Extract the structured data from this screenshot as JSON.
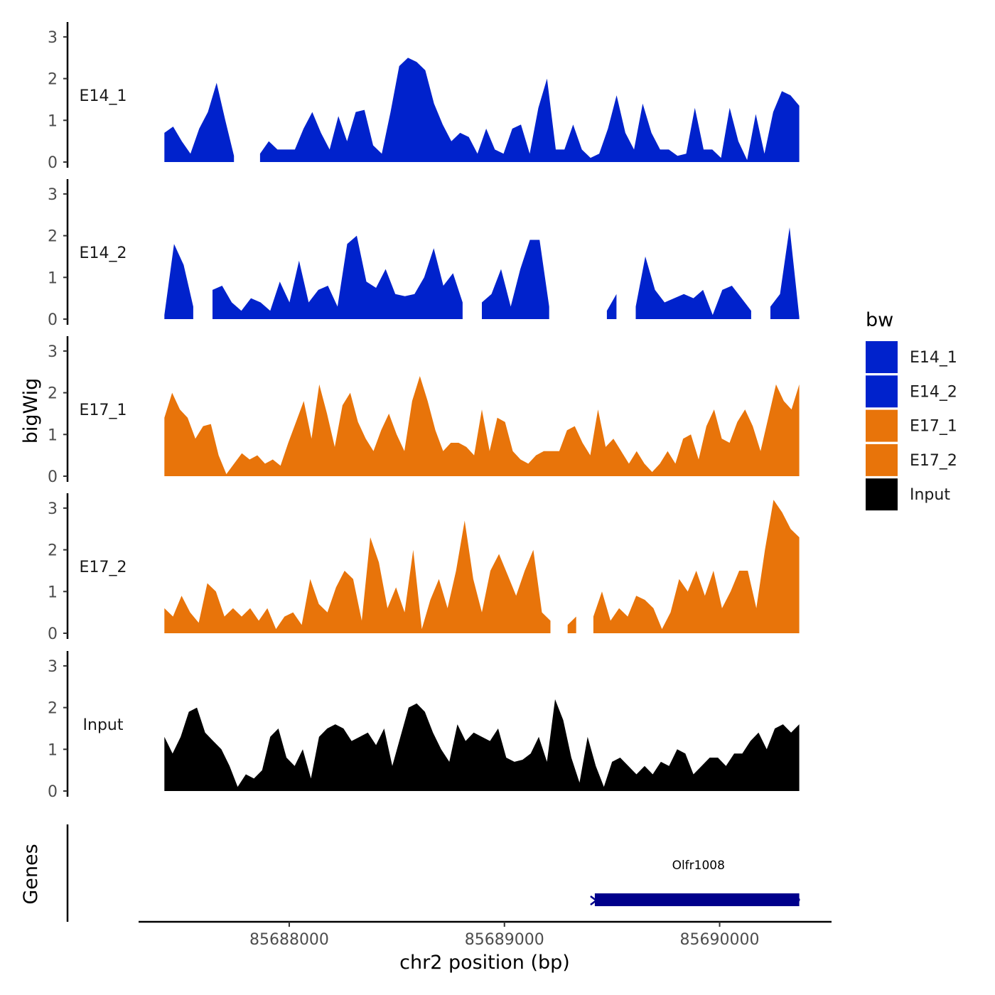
{
  "chart_data": {
    "type": "area",
    "ylabel": "bigWig",
    "xlabel": "chr2 position (bp)",
    "x_ticks": [
      85688000,
      85689000,
      85690000
    ],
    "x_tick_labels": [
      "85688000",
      "85689000",
      "85690000"
    ],
    "xlim": [
      85687300,
      85690520
    ],
    "data_x_range": [
      85687420,
      85690370
    ],
    "ylim": [
      0,
      3.2
    ],
    "y_ticks": [
      0,
      1,
      2,
      3
    ],
    "y_tick_labels": [
      "0",
      "1",
      "2",
      "3"
    ],
    "legend": {
      "title": "bw",
      "position": "right",
      "entries": [
        {
          "label": "E14_1",
          "color": "#0022CC"
        },
        {
          "label": "E14_2",
          "color": "#0022CC"
        },
        {
          "label": "E17_1",
          "color": "#E8740A"
        },
        {
          "label": "E17_2",
          "color": "#E8740A"
        },
        {
          "label": "Input",
          "color": "#000000"
        }
      ]
    },
    "series": [
      {
        "name": "E14_1",
        "color": "#0022CC",
        "values": [
          0.7,
          0.85,
          0.5,
          0.2,
          0.8,
          1.2,
          1.9,
          1.0,
          0.15,
          null,
          null,
          0.2,
          0.5,
          0.3,
          0.3,
          0.3,
          0.8,
          1.2,
          0.7,
          0.3,
          1.1,
          0.5,
          1.2,
          1.25,
          0.4,
          0.2,
          1.2,
          2.3,
          2.5,
          2.4,
          2.2,
          1.4,
          0.9,
          0.5,
          0.7,
          0.6,
          0.2,
          0.8,
          0.3,
          0.2,
          0.8,
          0.9,
          0.2,
          1.3,
          2.0,
          0.3,
          0.3,
          0.9,
          0.3,
          0.1,
          0.2,
          0.8,
          1.6,
          0.7,
          0.3,
          1.4,
          0.7,
          0.3,
          0.3,
          0.15,
          0.2,
          1.3,
          0.3,
          0.3,
          0.1,
          1.3,
          0.5,
          0.05,
          1.15,
          0.2,
          1.2,
          1.7,
          1.6,
          1.35
        ]
      },
      {
        "name": "E14_2",
        "color": "#0022CC",
        "values": [
          0.1,
          1.8,
          1.3,
          0.3,
          null,
          0.7,
          0.8,
          0.4,
          0.2,
          0.5,
          0.4,
          0.2,
          0.9,
          0.4,
          1.4,
          0.4,
          0.7,
          0.8,
          0.3,
          1.8,
          2.0,
          0.9,
          0.75,
          1.2,
          0.6,
          0.55,
          0.6,
          1.0,
          1.7,
          0.8,
          1.1,
          0.4,
          null,
          0.4,
          0.6,
          1.2,
          0.3,
          1.2,
          1.9,
          1.9,
          0.3,
          null,
          null,
          null,
          null,
          null,
          0.2,
          0.6,
          null,
          0.3,
          1.5,
          0.7,
          0.4,
          0.5,
          0.6,
          0.5,
          0.7,
          0.1,
          0.7,
          0.8,
          0.5,
          0.2,
          null,
          0.3,
          0.6,
          2.2,
          0.05
        ]
      },
      {
        "name": "E17_1",
        "color": "#E8740A",
        "values": [
          1.4,
          2.0,
          1.6,
          1.4,
          0.9,
          1.2,
          1.25,
          0.5,
          0.05,
          0.3,
          0.55,
          0.4,
          0.5,
          0.3,
          0.4,
          0.25,
          0.8,
          1.3,
          1.8,
          0.9,
          2.2,
          1.5,
          0.7,
          1.7,
          2.0,
          1.3,
          0.9,
          0.6,
          1.1,
          1.5,
          1.0,
          0.6,
          1.8,
          2.4,
          1.8,
          1.1,
          0.6,
          0.8,
          0.8,
          0.7,
          0.5,
          1.6,
          0.6,
          1.4,
          1.3,
          0.6,
          0.4,
          0.3,
          0.5,
          0.6,
          0.6,
          0.6,
          1.1,
          1.2,
          0.8,
          0.5,
          1.6,
          0.7,
          0.9,
          0.6,
          0.3,
          0.6,
          0.3,
          0.1,
          0.3,
          0.6,
          0.3,
          0.9,
          1.0,
          0.4,
          1.2,
          1.6,
          0.9,
          0.8,
          1.3,
          1.6,
          1.2,
          0.6,
          1.4,
          2.2,
          1.8,
          1.6,
          2.2
        ]
      },
      {
        "name": "E17_2",
        "color": "#E8740A",
        "values": [
          0.6,
          0.4,
          0.9,
          0.5,
          0.25,
          1.2,
          1.0,
          0.4,
          0.6,
          0.4,
          0.6,
          0.3,
          0.6,
          0.1,
          0.4,
          0.5,
          0.2,
          1.3,
          0.7,
          0.5,
          1.1,
          1.5,
          1.3,
          0.3,
          2.3,
          1.7,
          0.6,
          1.1,
          0.5,
          2.0,
          0.1,
          0.8,
          1.3,
          0.6,
          1.5,
          2.7,
          1.3,
          0.5,
          1.5,
          1.9,
          1.4,
          0.9,
          1.5,
          2.0,
          0.5,
          0.3,
          null,
          0.2,
          0.4,
          null,
          0.4,
          1.0,
          0.3,
          0.6,
          0.4,
          0.9,
          0.8,
          0.6,
          0.1,
          0.5,
          1.3,
          1.0,
          1.5,
          0.9,
          1.5,
          0.6,
          1.0,
          1.5,
          1.5,
          0.6,
          2.0,
          3.2,
          2.9,
          2.5,
          2.3
        ]
      },
      {
        "name": "Input",
        "color": "#000000",
        "values": [
          1.3,
          0.9,
          1.3,
          1.9,
          2.0,
          1.4,
          1.2,
          1.0,
          0.6,
          0.1,
          0.4,
          0.3,
          0.5,
          1.3,
          1.5,
          0.8,
          0.6,
          1.0,
          0.3,
          1.3,
          1.5,
          1.6,
          1.5,
          1.2,
          1.3,
          1.4,
          1.1,
          1.5,
          0.6,
          1.3,
          2.0,
          2.1,
          1.9,
          1.4,
          1.0,
          0.7,
          1.6,
          1.2,
          1.4,
          1.3,
          1.2,
          1.5,
          0.8,
          0.7,
          0.75,
          0.9,
          1.3,
          0.7,
          2.2,
          1.7,
          0.8,
          0.2,
          1.3,
          0.6,
          0.1,
          0.7,
          0.8,
          0.6,
          0.4,
          0.6,
          0.4,
          0.7,
          0.6,
          1.0,
          0.9,
          0.4,
          0.6,
          0.8,
          0.8,
          0.6,
          0.9,
          0.9,
          1.2,
          1.4,
          1.0,
          1.5,
          1.6,
          1.4,
          1.6
        ]
      }
    ],
    "genes_track": {
      "label": "Genes",
      "genes": [
        {
          "name": "Olfr1008",
          "start": 85689420,
          "end": 85690370,
          "strand": "-",
          "color": "#00008B"
        }
      ]
    }
  }
}
